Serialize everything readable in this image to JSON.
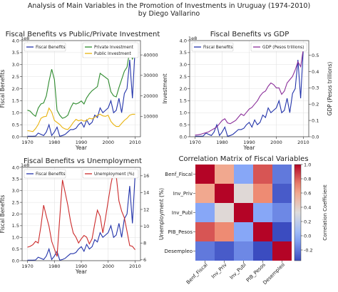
{
  "figure": {
    "title_line1": "Analysis of Main Variables in the Promotion of Investments in Uruguay (1974-2010)",
    "title_line2": "by Diego Vallarino"
  },
  "colors": {
    "benefits": "#2233aa",
    "private": "#2e8b2e",
    "public": "#e8b30e",
    "gdp": "#8b2f9a",
    "unemployment": "#cc2b2b"
  },
  "chart_data": [
    {
      "type": "line",
      "title": "Fiscal Benefits vs Public/Private Investment",
      "xlabel": "Year",
      "ylabel": "Fiscal Benefits",
      "y2label": "Investment",
      "y_multiplier_label": "1e8",
      "xlim": [
        1968,
        2012
      ],
      "ylim": [
        0,
        4.0
      ],
      "y2lim": [
        0,
        47000
      ],
      "x_ticks": [
        "1970",
        "1980",
        "1990",
        "2000",
        "2010"
      ],
      "y_ticks": [
        "0.0",
        "0.5",
        "1.0",
        "1.5",
        "2.0",
        "2.5",
        "3.0",
        "3.5",
        "4.0"
      ],
      "y2_ticks": [
        "10000",
        "20000",
        "30000",
        "40000"
      ],
      "legend_left": [
        "Fiscal Benefits"
      ],
      "legend_right": [
        "Private Investment",
        "Public Investment"
      ],
      "x": [
        1970,
        1971,
        1972,
        1973,
        1974,
        1975,
        1976,
        1977,
        1978,
        1979,
        1980,
        1981,
        1982,
        1983,
        1984,
        1985,
        1986,
        1987,
        1988,
        1989,
        1990,
        1991,
        1992,
        1993,
        1994,
        1995,
        1996,
        1997,
        1998,
        1999,
        2000,
        2001,
        2002,
        2003,
        2004,
        2005,
        2006,
        2007,
        2008,
        2009,
        2010
      ],
      "series": [
        {
          "name": "Fiscal Benefits",
          "axis": "left",
          "values": [
            0.02,
            0.02,
            0.02,
            0.03,
            0.15,
            0.1,
            0.05,
            0.2,
            0.5,
            0.05,
            0.2,
            0.4,
            0.02,
            0.05,
            0.1,
            0.2,
            0.3,
            0.3,
            0.35,
            0.5,
            0.6,
            0.4,
            0.7,
            0.5,
            0.6,
            0.9,
            0.8,
            1.2,
            1.0,
            1.1,
            1.2,
            1.5,
            1.0,
            1.1,
            1.6,
            1.0,
            1.8,
            2.0,
            3.2,
            1.6,
            3.7
          ]
        },
        {
          "name": "Private Investment",
          "axis": "right",
          "values": [
            13000,
            12500,
            11000,
            10000,
            14000,
            16000,
            16500,
            20000,
            27000,
            33000,
            28000,
            13000,
            10500,
            9000,
            9500,
            10500,
            14000,
            16500,
            16000,
            16500,
            17500,
            16000,
            19000,
            21000,
            22500,
            23500,
            24500,
            31000,
            30000,
            29000,
            28000,
            22000,
            20000,
            19500,
            24000,
            28000,
            32000,
            34000,
            42000,
            38000,
            41000
          ]
        },
        {
          "name": "Public Investment",
          "axis": "right",
          "values": [
            3000,
            2800,
            2500,
            4000,
            6000,
            9000,
            9800,
            10000,
            14000,
            12000,
            8000,
            7000,
            6000,
            4500,
            3800,
            3500,
            5000,
            7000,
            8500,
            7800,
            8200,
            7600,
            8000,
            9000,
            8700,
            9500,
            10500,
            11000,
            10200,
            10000,
            10500,
            7500,
            6000,
            5000,
            5000,
            6500,
            8000,
            9000,
            10500,
            11000,
            11000
          ]
        }
      ]
    },
    {
      "type": "line",
      "title": "Fiscal Benefits vs GDP",
      "xlabel": "Year",
      "ylabel": "",
      "y2label": "GDP (Pesos trillions)",
      "y_multiplier_label": "1e8",
      "xlim": [
        1968,
        2012
      ],
      "ylim": [
        0,
        4.0
      ],
      "y2lim": [
        0,
        0.59
      ],
      "x_ticks": [
        "1970",
        "1980",
        "1990",
        "2000",
        "2010"
      ],
      "y_ticks": [
        "0.0",
        "0.5",
        "1.0",
        "1.5",
        "2.0",
        "2.5",
        "3.0",
        "3.5",
        "4.0"
      ],
      "y2_ticks": [
        "0.0",
        "0.1",
        "0.2",
        "0.3",
        "0.4",
        "0.5"
      ],
      "legend_left": [
        "Fiscal Benefits"
      ],
      "legend_right": [
        "GDP (Pesos trillions)"
      ],
      "x": [
        1970,
        1971,
        1972,
        1973,
        1974,
        1975,
        1976,
        1977,
        1978,
        1979,
        1980,
        1981,
        1982,
        1983,
        1984,
        1985,
        1986,
        1987,
        1988,
        1989,
        1990,
        1991,
        1992,
        1993,
        1994,
        1995,
        1996,
        1997,
        1998,
        1999,
        2000,
        2001,
        2002,
        2003,
        2004,
        2005,
        2006,
        2007,
        2008,
        2009,
        2010
      ],
      "series": [
        {
          "name": "Fiscal Benefits",
          "axis": "left",
          "values": [
            0.02,
            0.02,
            0.02,
            0.03,
            0.15,
            0.1,
            0.05,
            0.2,
            0.5,
            0.05,
            0.2,
            0.4,
            0.02,
            0.05,
            0.1,
            0.2,
            0.3,
            0.3,
            0.35,
            0.5,
            0.6,
            0.4,
            0.7,
            0.5,
            0.6,
            0.9,
            0.8,
            1.2,
            1.0,
            1.1,
            1.2,
            1.5,
            1.0,
            1.1,
            1.6,
            1.0,
            1.8,
            2.0,
            3.2,
            1.6,
            3.7
          ]
        },
        {
          "name": "GDP (Pesos trillions)",
          "axis": "right",
          "values": [
            0.01,
            0.012,
            0.015,
            0.02,
            0.025,
            0.03,
            0.04,
            0.05,
            0.06,
            0.08,
            0.1,
            0.11,
            0.085,
            0.08,
            0.09,
            0.1,
            0.12,
            0.14,
            0.13,
            0.15,
            0.17,
            0.18,
            0.2,
            0.22,
            0.25,
            0.27,
            0.28,
            0.31,
            0.33,
            0.32,
            0.3,
            0.3,
            0.26,
            0.28,
            0.33,
            0.35,
            0.37,
            0.41,
            0.46,
            0.43,
            0.54
          ]
        }
      ]
    },
    {
      "type": "line",
      "title": "Fiscal Benefits vs Unemployment",
      "xlabel": "Year",
      "ylabel": "Fiscal Benefits",
      "y2label": "Unemployment (%)",
      "y_multiplier_label": "1e8",
      "xlim": [
        1968,
        2012
      ],
      "ylim": [
        0,
        4.0
      ],
      "y2lim": [
        5.9,
        17.0
      ],
      "x_ticks": [
        "1970",
        "1980",
        "1990",
        "2000",
        "2010"
      ],
      "y_ticks": [
        "0.0",
        "0.5",
        "1.0",
        "1.5",
        "2.0",
        "2.5",
        "3.0",
        "3.5",
        "4.0"
      ],
      "y2_ticks": [
        "6",
        "8",
        "10",
        "12",
        "14",
        "16"
      ],
      "legend_left": [
        "Fiscal Benefits"
      ],
      "legend_right": [
        "Unemployment (%)"
      ],
      "x": [
        1970,
        1971,
        1972,
        1973,
        1974,
        1975,
        1976,
        1977,
        1978,
        1979,
        1980,
        1981,
        1982,
        1983,
        1984,
        1985,
        1986,
        1987,
        1988,
        1989,
        1990,
        1991,
        1992,
        1993,
        1994,
        1995,
        1996,
        1997,
        1998,
        1999,
        2000,
        2001,
        2002,
        2003,
        2004,
        2005,
        2006,
        2007,
        2008,
        2009,
        2010
      ],
      "series": [
        {
          "name": "Fiscal Benefits",
          "axis": "left",
          "values": [
            0.02,
            0.02,
            0.02,
            0.03,
            0.15,
            0.1,
            0.05,
            0.2,
            0.5,
            0.05,
            0.2,
            0.4,
            0.02,
            0.05,
            0.1,
            0.2,
            0.3,
            0.3,
            0.35,
            0.5,
            0.6,
            0.4,
            0.7,
            0.5,
            0.6,
            0.9,
            0.8,
            1.2,
            1.0,
            1.1,
            1.2,
            1.5,
            1.0,
            1.1,
            1.6,
            1.0,
            1.8,
            2.0,
            3.2,
            1.6,
            3.7
          ]
        },
        {
          "name": "Unemployment (%)",
          "axis": "right",
          "values": [
            7.5,
            7.6,
            7.8,
            8.2,
            8.0,
            10.0,
            12.5,
            11.2,
            10.0,
            8.2,
            7.3,
            6.4,
            11.0,
            15.5,
            14.0,
            12.5,
            10.6,
            9.2,
            8.7,
            8.0,
            8.5,
            8.9,
            8.7,
            7.9,
            8.5,
            10.3,
            11.9,
            11.2,
            9.2,
            11.0,
            13.0,
            15.0,
            16.5,
            16.0,
            13.0,
            11.8,
            11.0,
            9.4,
            7.7,
            7.6,
            7.2
          ]
        }
      ]
    },
    {
      "type": "heatmap",
      "title": "Correlation Matrix of Fiscal Variables",
      "rows": [
        "Benf_Fiscal",
        "Inv_Priv",
        "Inv_Publ",
        "PIB_Pesos",
        "Desempleo"
      ],
      "cols": [
        "Benf_Fiscal",
        "Inv_Priv",
        "Inv_Publ",
        "PIB_Pesos",
        "Desempleo"
      ],
      "values": [
        [
          1.0,
          0.6,
          -0.05,
          0.82,
          -0.2
        ],
        [
          0.6,
          1.0,
          0.35,
          0.7,
          -0.3
        ],
        [
          -0.05,
          0.35,
          1.0,
          -0.05,
          -0.15
        ],
        [
          0.82,
          0.7,
          -0.05,
          1.0,
          -0.35
        ],
        [
          -0.2,
          -0.3,
          -0.15,
          -0.35,
          1.0
        ]
      ],
      "colorbar_label": "Correlation Coefficient",
      "colorbar_range": [
        -0.35,
        1.0
      ],
      "colorbar_ticks": [
        "-0.2",
        "0.0",
        "0.2",
        "0.4",
        "0.6",
        "0.8",
        "1.0"
      ],
      "colormap": "coolwarm"
    }
  ]
}
